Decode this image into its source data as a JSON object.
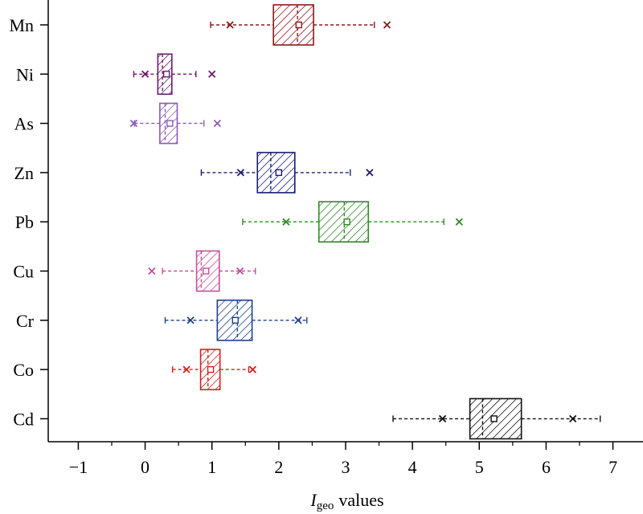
{
  "chart_data": {
    "type": "box",
    "xlabel_main": "I",
    "xlabel_sub": "geo",
    "xlabel_rest": "values",
    "xlim": [
      -1.45,
      7.45
    ],
    "xticks": [
      "−1",
      "0",
      "1",
      "2",
      "3",
      "4",
      "5",
      "6",
      "7"
    ],
    "xtick_values": [
      -1,
      0,
      1,
      2,
      3,
      4,
      5,
      6,
      7
    ],
    "grid": false,
    "categories": [
      "Mn",
      "Ni",
      "As",
      "Zn",
      "Pb",
      "Cu",
      "Cr",
      "Co",
      "Cd"
    ],
    "series": [
      {
        "category": "Mn",
        "color": "#8b1a1a",
        "whisker_low": 0.98,
        "q1": 1.92,
        "median": 2.28,
        "q3": 2.52,
        "whisker_high": 3.43,
        "mean": 2.3,
        "outliers": [
          1.27,
          3.62
        ]
      },
      {
        "category": "Ni",
        "color": "#6a1c6e",
        "whisker_low": -0.17,
        "q1": 0.19,
        "median": 0.26,
        "q3": 0.4,
        "whisker_high": 0.76,
        "mean": 0.32,
        "outliers": [
          0.0,
          1.0
        ]
      },
      {
        "category": "As",
        "color": "#8a5bb8",
        "whisker_low": -0.16,
        "q1": 0.22,
        "median": 0.3,
        "q3": 0.48,
        "whisker_high": 0.88,
        "mean": 0.37,
        "outliers": [
          -0.17,
          1.08
        ]
      },
      {
        "category": "Zn",
        "color": "#1a1f6e",
        "whisker_low": 0.84,
        "q1": 1.68,
        "median": 1.88,
        "q3": 2.24,
        "whisker_high": 3.07,
        "mean": 2.0,
        "outliers": [
          1.43,
          3.36
        ]
      },
      {
        "category": "Pb",
        "color": "#2e8b22",
        "whisker_low": 1.46,
        "q1": 2.6,
        "median": 2.98,
        "q3": 3.34,
        "whisker_high": 4.47,
        "mean": 3.02,
        "outliers": [
          2.11,
          4.7
        ]
      },
      {
        "category": "Cu",
        "color": "#c2509a",
        "whisker_low": 0.26,
        "q1": 0.77,
        "median": 0.84,
        "q3": 1.11,
        "whisker_high": 1.65,
        "mean": 0.91,
        "outliers": [
          0.1,
          1.42
        ]
      },
      {
        "category": "Cr",
        "color": "#1f3f8f",
        "whisker_low": 0.3,
        "q1": 1.08,
        "median": 1.38,
        "q3": 1.6,
        "whisker_high": 2.42,
        "mean": 1.35,
        "outliers": [
          0.68,
          2.29
        ]
      },
      {
        "category": "Co",
        "color": "#d41f1f",
        "whisker_low": 0.41,
        "q1": 0.83,
        "median": 0.94,
        "q3": 1.12,
        "whisker_high": 1.55,
        "mean": 0.98,
        "outliers": [
          0.62,
          1.61
        ]
      },
      {
        "category": "Cd",
        "color": "#111111",
        "whisker_low": 3.71,
        "q1": 4.86,
        "median": 5.05,
        "q3": 5.63,
        "whisker_high": 6.81,
        "mean": 5.22,
        "outliers": [
          4.45,
          6.4
        ]
      }
    ]
  }
}
